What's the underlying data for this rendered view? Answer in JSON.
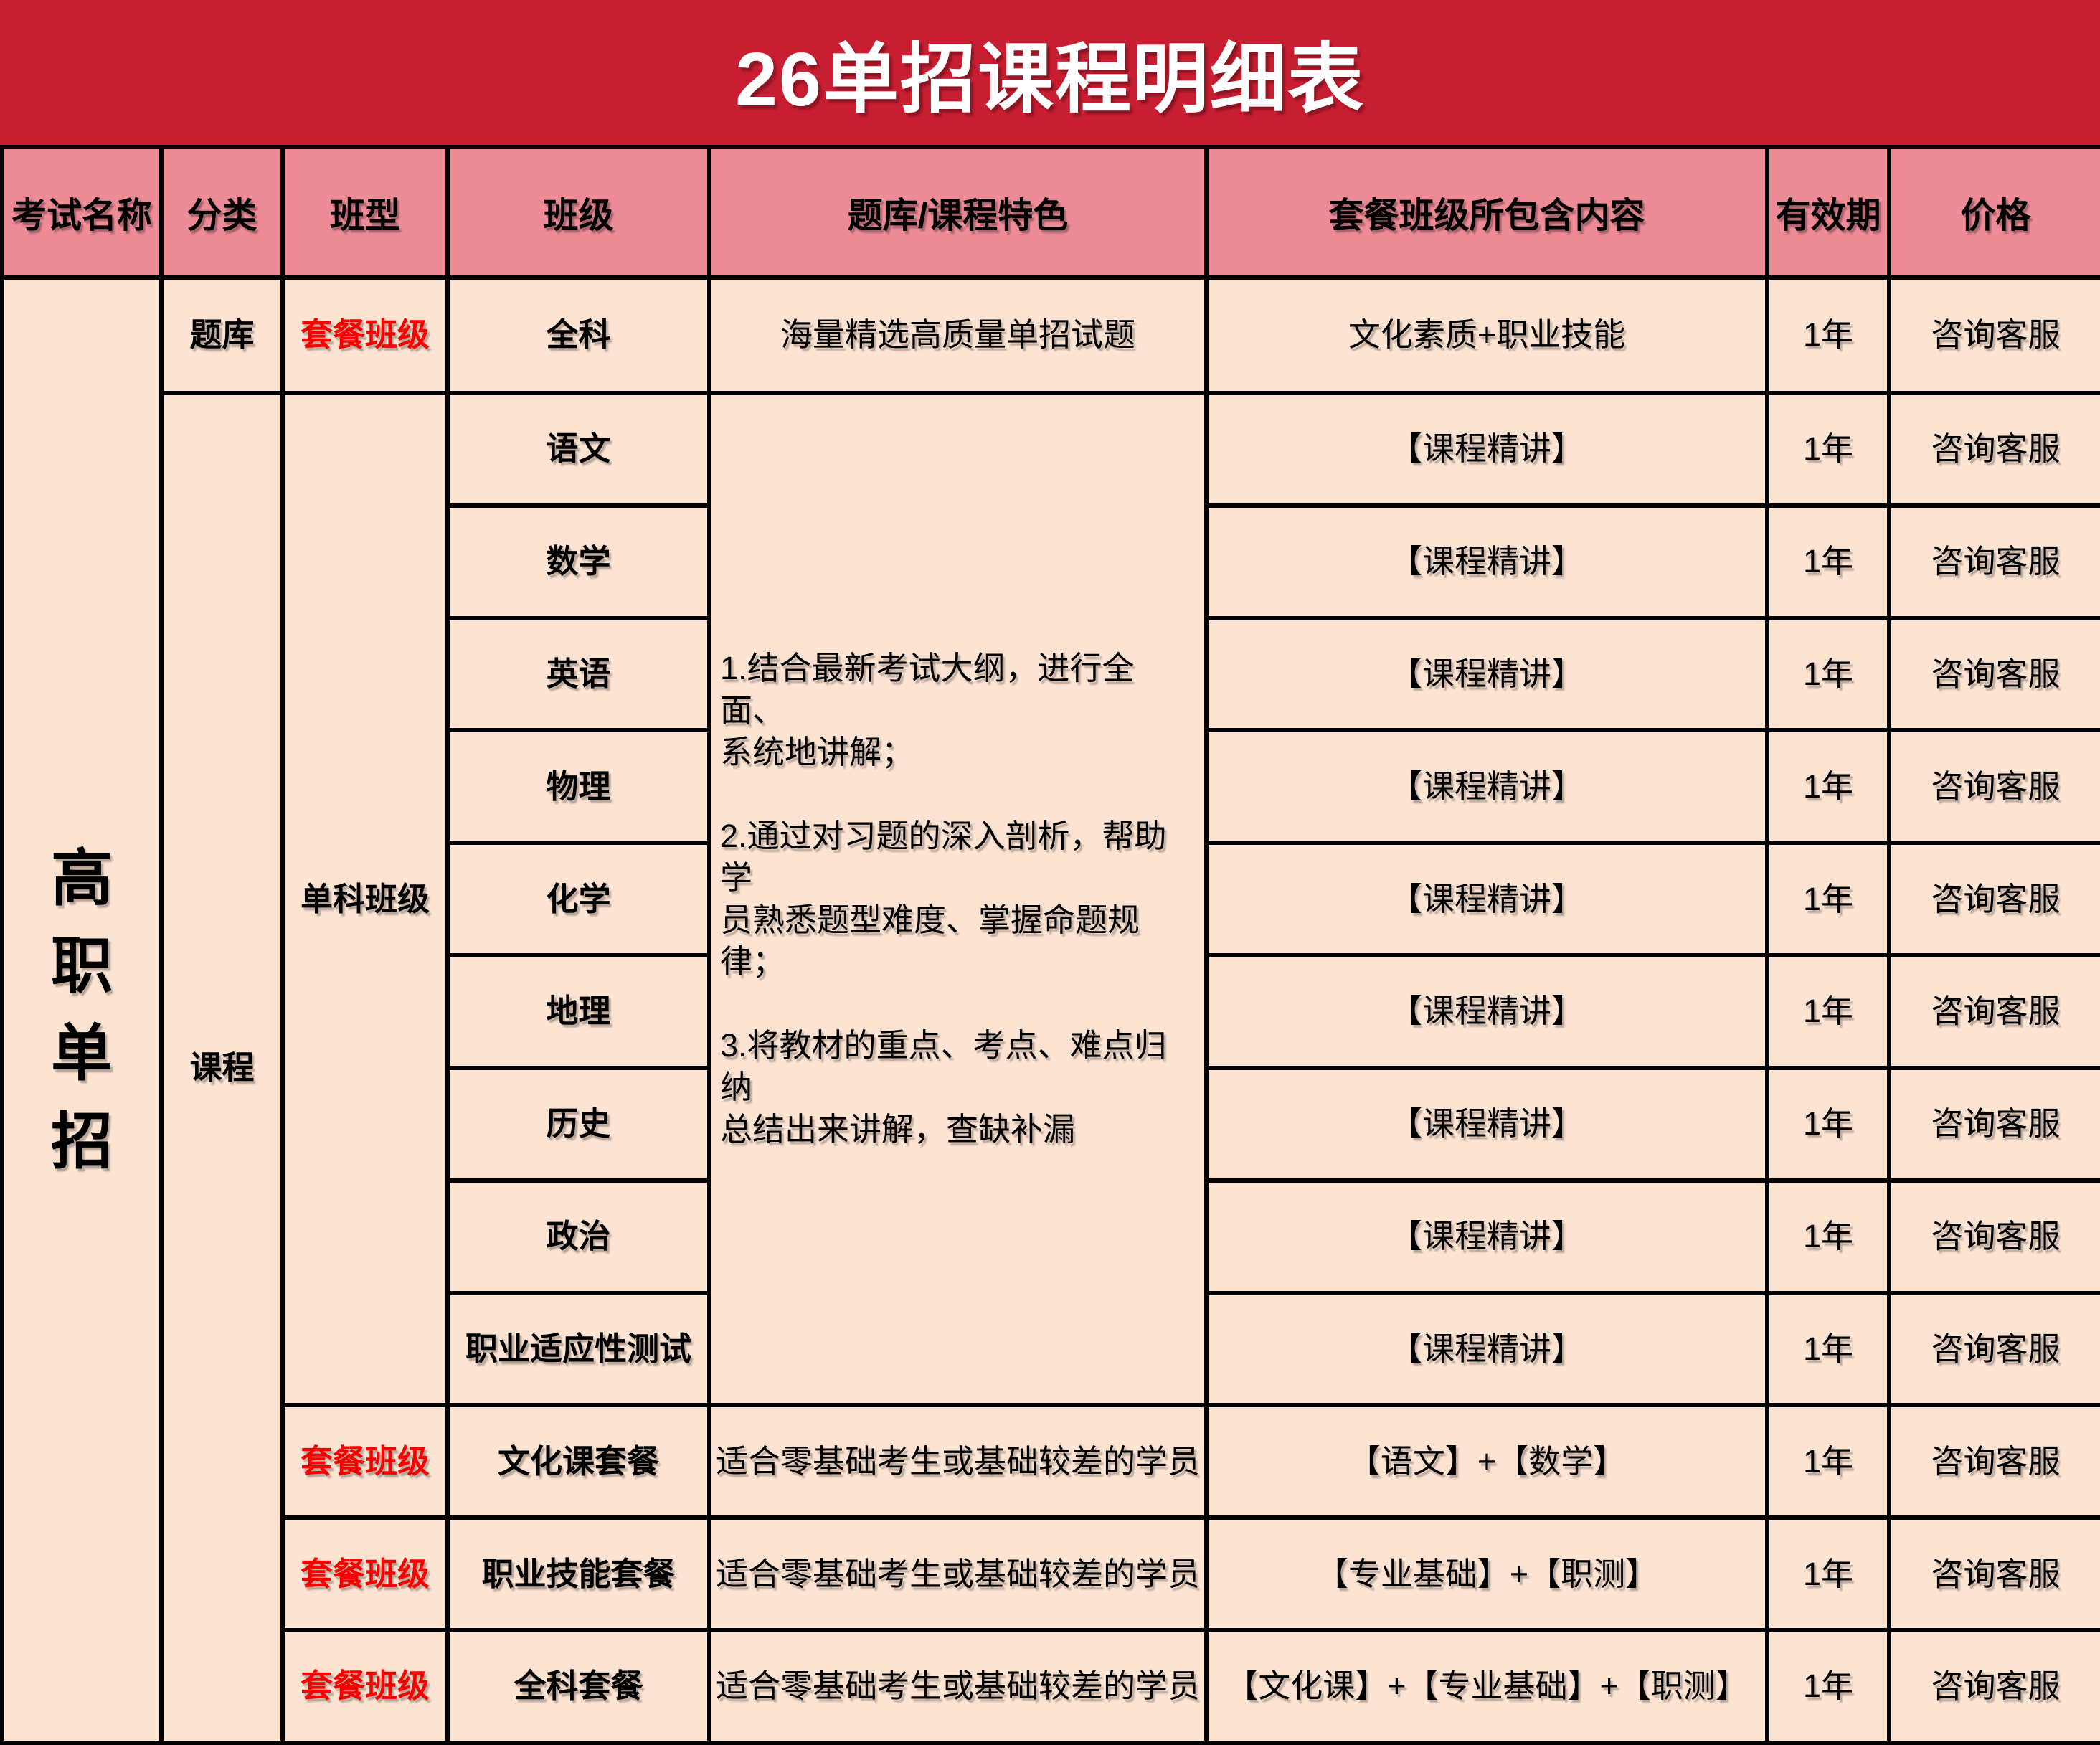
{
  "title": "26单招课程明细表",
  "colors": {
    "banner_red": "#C81E31",
    "header_pink": "#ED8B97",
    "cell_cream": "#FCE3D2",
    "accent_red": "#FA0000",
    "grid_black": "#000000",
    "title_white": "#FFFFFF"
  },
  "columns": {
    "exam_name": "考试名称",
    "category": "分类",
    "class_type": "班型",
    "class_name": "班级",
    "features": "题库/课程特色",
    "package_contents": "套餐班级所包含内容",
    "validity": "有效期",
    "price": "价格"
  },
  "exam_name": "高职单招",
  "category_tiku": "题库",
  "category_course": "课程",
  "class_type_package": "套餐班级",
  "class_type_single": "单科班级",
  "common": {
    "validity": "1年",
    "price": "咨询客服",
    "course_content": "【课程精讲】",
    "package_note": "适合零基础考生或基础较差的学员"
  },
  "tiku_row": {
    "class_name": "全科",
    "feature": "海量精选高质量单招试题",
    "contents": "文化素质+职业技能"
  },
  "subjects": [
    "语文",
    "数学",
    "英语",
    "物理",
    "化学",
    "地理",
    "历史",
    "政治",
    "职业适应性测试"
  ],
  "course_features": [
    "1.结合最新考试大纲，进行全面、\n系统地讲解；",
    "2.通过对习题的深入剖析，帮助学\n员熟悉题型难度、掌握命题规律；",
    "3.将教材的重点、考点、难点归纳\n总结出来讲解，查缺补漏"
  ],
  "package_rows": [
    {
      "class_name": "文化课套餐",
      "contents": "【语文】+【数学】"
    },
    {
      "class_name": "职业技能套餐",
      "contents": "【专业基础】+【职测】"
    },
    {
      "class_name": "全科套餐",
      "contents": "【文化课】+【专业基础】+【职测】"
    }
  ]
}
